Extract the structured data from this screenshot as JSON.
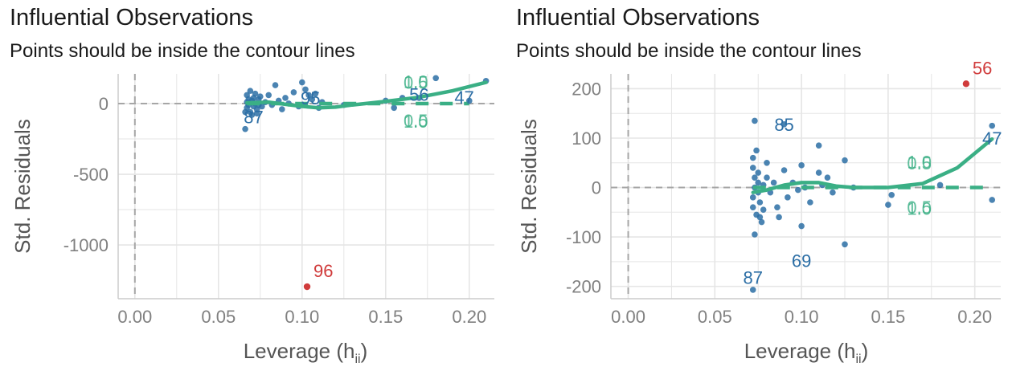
{
  "colors": {
    "point": "#2C6EA5",
    "influential": "#D03B3B",
    "contour": "#3AAF85",
    "grid": "#E5E5E5",
    "ref": "#A6A6A6"
  },
  "chart_data": [
    {
      "type": "scatter",
      "title": "Influential Observations",
      "subtitle": "Points should be inside the contour lines",
      "xlabel": "Leverage (h",
      "xlabel_sub": "ii",
      "xlabel_end": ")",
      "ylabel": "Std. Residuals",
      "xlim": [
        -0.01,
        0.215
      ],
      "ylim": [
        -1380,
        210
      ],
      "x_ticks": [
        0.0,
        0.05,
        0.1,
        0.15,
        0.2
      ],
      "x_tick_labels": [
        "0.00",
        "0.05",
        "0.10",
        "0.15",
        "0.20"
      ],
      "y_ticks": [
        0,
        -500,
        -1000
      ],
      "y_tick_labels": [
        "0",
        "-500",
        "-1000"
      ],
      "points": [
        [
          0.066,
          -180
        ],
        [
          0.066,
          -60
        ],
        [
          0.067,
          10
        ],
        [
          0.067,
          60
        ],
        [
          0.067,
          -30
        ],
        [
          0.068,
          30
        ],
        [
          0.068,
          -10
        ],
        [
          0.069,
          90
        ],
        [
          0.069,
          -60
        ],
        [
          0.07,
          20
        ],
        [
          0.07,
          -80
        ],
        [
          0.071,
          40
        ],
        [
          0.071,
          -20
        ],
        [
          0.072,
          0
        ],
        [
          0.072,
          70
        ],
        [
          0.073,
          -40
        ],
        [
          0.073,
          -70
        ],
        [
          0.074,
          30
        ],
        [
          0.074,
          -10
        ],
        [
          0.075,
          50
        ],
        [
          0.076,
          -20
        ],
        [
          0.078,
          10
        ],
        [
          0.08,
          60
        ],
        [
          0.082,
          -10
        ],
        [
          0.084,
          130
        ],
        [
          0.086,
          20
        ],
        [
          0.088,
          -40
        ],
        [
          0.09,
          40
        ],
        [
          0.092,
          0
        ],
        [
          0.095,
          80
        ],
        [
          0.098,
          -20
        ],
        [
          0.1,
          150
        ],
        [
          0.102,
          100
        ],
        [
          0.104,
          60
        ],
        [
          0.106,
          30
        ],
        [
          0.108,
          70
        ],
        [
          0.11,
          -30
        ],
        [
          0.112,
          10
        ],
        [
          0.125,
          -10
        ],
        [
          0.15,
          20
        ],
        [
          0.155,
          -30
        ],
        [
          0.16,
          40
        ],
        [
          0.17,
          40
        ],
        [
          0.18,
          180
        ],
        [
          0.2,
          20
        ],
        [
          0.21,
          160
        ]
      ],
      "influential": [
        {
          "x": 0.103,
          "y": -1295,
          "label": "96"
        }
      ],
      "point_labels": [
        {
          "x": 0.105,
          "y": 40,
          "label": "95"
        },
        {
          "x": 0.071,
          "y": -95,
          "label": "87"
        },
        {
          "x": 0.17,
          "y": 65,
          "label": "56"
        },
        {
          "x": 0.197,
          "y": 45,
          "label": "47"
        }
      ],
      "contour_labels": [
        {
          "x": 0.168,
          "y": 150,
          "label": "0.5"
        },
        {
          "x": 0.168,
          "y": 155,
          "label": "1.0"
        },
        {
          "x": 0.168,
          "y": -120,
          "label": "0.5"
        },
        {
          "x": 0.168,
          "y": -125,
          "label": "1.0"
        }
      ],
      "fit_line": [
        [
          0.067,
          5
        ],
        [
          0.08,
          10
        ],
        [
          0.09,
          -5
        ],
        [
          0.1,
          -20
        ],
        [
          0.11,
          -30
        ],
        [
          0.12,
          -25
        ],
        [
          0.13,
          -10
        ],
        [
          0.15,
          15
        ],
        [
          0.17,
          45
        ],
        [
          0.19,
          90
        ],
        [
          0.21,
          150
        ]
      ],
      "flat_line": [
        [
          0.067,
          0
        ],
        [
          0.2,
          0
        ]
      ]
    },
    {
      "type": "scatter",
      "title": "Influential Observations",
      "subtitle": "Points should be inside the contour lines",
      "xlabel": "Leverage (h",
      "xlabel_sub": "ii",
      "xlabel_end": ")",
      "ylabel": "Std. Residuals",
      "xlim": [
        -0.01,
        0.215
      ],
      "ylim": [
        -225,
        230
      ],
      "x_ticks": [
        0.0,
        0.05,
        0.1,
        0.15,
        0.2
      ],
      "x_tick_labels": [
        "0.00",
        "0.05",
        "0.10",
        "0.15",
        "0.20"
      ],
      "y_ticks": [
        200,
        100,
        0,
        -100,
        -200
      ],
      "y_tick_labels": [
        "200",
        "100",
        "0",
        "-100",
        "-200"
      ],
      "points": [
        [
          0.072,
          -207
        ],
        [
          0.073,
          135
        ],
        [
          0.073,
          -95
        ],
        [
          0.072,
          60
        ],
        [
          0.072,
          40
        ],
        [
          0.073,
          20
        ],
        [
          0.073,
          0
        ],
        [
          0.072,
          -20
        ],
        [
          0.072,
          -40
        ],
        [
          0.074,
          -55
        ],
        [
          0.074,
          75
        ],
        [
          0.075,
          30
        ],
        [
          0.075,
          10
        ],
        [
          0.075,
          -10
        ],
        [
          0.076,
          -30
        ],
        [
          0.076,
          -60
        ],
        [
          0.077,
          -70
        ],
        [
          0.078,
          5
        ],
        [
          0.078,
          -45
        ],
        [
          0.08,
          50
        ],
        [
          0.08,
          20
        ],
        [
          0.082,
          -10
        ],
        [
          0.084,
          10
        ],
        [
          0.086,
          -40
        ],
        [
          0.087,
          -60
        ],
        [
          0.09,
          128
        ],
        [
          0.09,
          35
        ],
        [
          0.092,
          -20
        ],
        [
          0.095,
          10
        ],
        [
          0.098,
          -5
        ],
        [
          0.1,
          45
        ],
        [
          0.1,
          -78
        ],
        [
          0.102,
          0
        ],
        [
          0.105,
          -30
        ],
        [
          0.11,
          85
        ],
        [
          0.11,
          30
        ],
        [
          0.112,
          5
        ],
        [
          0.115,
          20
        ],
        [
          0.118,
          -10
        ],
        [
          0.125,
          55
        ],
        [
          0.125,
          -115
        ],
        [
          0.13,
          0
        ],
        [
          0.15,
          -35
        ],
        [
          0.152,
          -15
        ],
        [
          0.18,
          5
        ],
        [
          0.21,
          125
        ],
        [
          0.21,
          -25
        ]
      ],
      "influential": [
        {
          "x": 0.195,
          "y": 210,
          "label": "56"
        }
      ],
      "point_labels": [
        {
          "x": 0.09,
          "y": 128,
          "label": "85"
        },
        {
          "x": 0.21,
          "y": 100,
          "label": "47"
        },
        {
          "x": 0.1,
          "y": -148,
          "label": "69"
        },
        {
          "x": 0.072,
          "y": -182,
          "label": "87"
        }
      ],
      "contour_labels": [
        {
          "x": 0.168,
          "y": 50,
          "label": "0.5"
        },
        {
          "x": 0.168,
          "y": 52,
          "label": "1.0"
        },
        {
          "x": 0.168,
          "y": -40,
          "label": "0.5"
        },
        {
          "x": 0.168,
          "y": -42,
          "label": "1.0"
        }
      ],
      "fit_line": [
        [
          0.072,
          -10
        ],
        [
          0.08,
          -5
        ],
        [
          0.09,
          5
        ],
        [
          0.1,
          10
        ],
        [
          0.11,
          10
        ],
        [
          0.12,
          3
        ],
        [
          0.13,
          0
        ],
        [
          0.15,
          0
        ],
        [
          0.17,
          8
        ],
        [
          0.19,
          40
        ],
        [
          0.21,
          98
        ]
      ],
      "flat_line": [
        [
          0.072,
          0
        ],
        [
          0.21,
          0
        ]
      ]
    }
  ]
}
